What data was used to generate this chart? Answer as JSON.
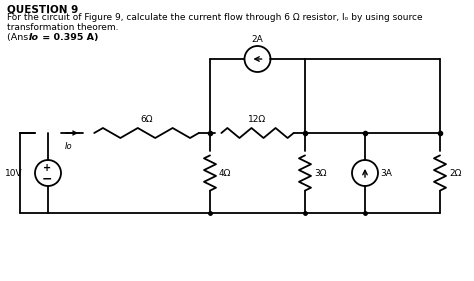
{
  "title_line1": "QUESTION 9",
  "body_text": "For the circuit of Figure 9, calculate the current flow through 6 Ω resistor, Iₒ by using source\ntransformation theorem.",
  "ans_text": "(Ans: Io = 0.395 A)",
  "background_color": "#ffffff",
  "line_color": "#000000",
  "text_color": "#000000",
  "component_labels": {
    "R1": "6Ω",
    "R2": "12Ω",
    "R3": "4Ω",
    "R4": "3Ω",
    "R5": "2Ω",
    "VS": "10V",
    "CS1": "2A",
    "CS2": "3A",
    "Io_label": "Io"
  },
  "figsize": [
    4.74,
    2.81
  ],
  "dpi": 100
}
